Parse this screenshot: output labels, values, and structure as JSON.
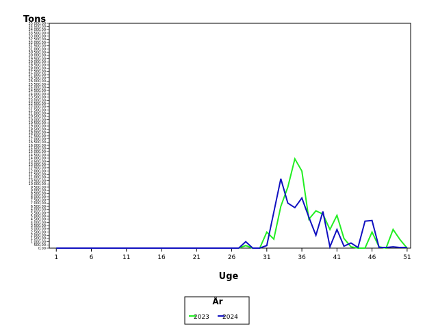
{
  "chart_data": {
    "type": "line",
    "ylabel": "Tons",
    "xlabel": "Uge",
    "x": [
      1,
      2,
      3,
      4,
      5,
      6,
      7,
      8,
      9,
      10,
      11,
      12,
      13,
      14,
      15,
      16,
      17,
      18,
      19,
      20,
      21,
      22,
      23,
      24,
      25,
      26,
      27,
      28,
      29,
      30,
      31,
      32,
      33,
      34,
      35,
      36,
      37,
      38,
      39,
      40,
      41,
      42,
      43,
      44,
      45,
      46,
      47,
      48,
      49,
      50,
      51
    ],
    "x_ticks": [
      1,
      6,
      11,
      16,
      21,
      26,
      31,
      36,
      41,
      46,
      51
    ],
    "xlim": [
      0,
      51.5
    ],
    "ylim": [
      0,
      35000
    ],
    "y_tick_step": 500,
    "grid": false,
    "legend": {
      "title": "År",
      "position": "bottom-center"
    },
    "colors": {
      "2023": "#22ee22",
      "2024": "#1010c0"
    },
    "series": [
      {
        "name": "2023",
        "values": [
          0,
          0,
          0,
          0,
          0,
          0,
          0,
          0,
          0,
          0,
          0,
          0,
          0,
          0,
          0,
          0,
          0,
          0,
          0,
          0,
          0,
          0,
          0,
          0,
          0,
          0,
          0,
          400,
          0,
          0,
          2500,
          1400,
          6500,
          9500,
          13900,
          12000,
          4500,
          5800,
          5300,
          2900,
          5100,
          1500,
          200,
          0,
          0,
          2500,
          200,
          0,
          2900,
          1300,
          0
        ]
      },
      {
        "name": "2024",
        "values": [
          0,
          0,
          0,
          0,
          0,
          0,
          0,
          0,
          0,
          0,
          0,
          0,
          0,
          0,
          0,
          0,
          0,
          0,
          0,
          0,
          0,
          0,
          0,
          0,
          0,
          0,
          0,
          1000,
          0,
          0,
          400,
          5600,
          10800,
          7000,
          6300,
          7800,
          4800,
          2000,
          5700,
          200,
          2900,
          300,
          800,
          100,
          4200,
          4300,
          100,
          100,
          200,
          100,
          100
        ]
      }
    ]
  }
}
